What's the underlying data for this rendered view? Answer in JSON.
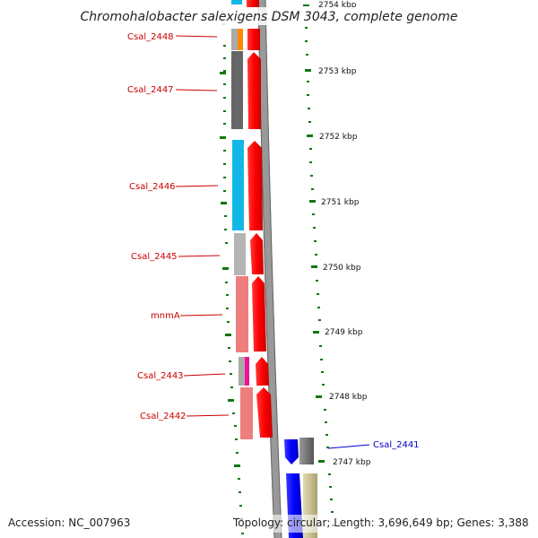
{
  "title": "Chromohalobacter salexigens DSM 3043, complete genome",
  "accession": "Accession: NC_007963",
  "topology": "Topology: circular; Length: 3,696,649 bp; Genes: 3,388",
  "scale_labels": [
    "2754 kbp",
    "2753 kbp",
    "2752 kbp",
    "2751 kbp",
    "2750 kbp",
    "2749 kbp",
    "2748 kbp",
    "2747 kbp"
  ],
  "genes": [
    {
      "name": "Csal_2448",
      "color": "#cc0000",
      "cog_colors": [
        "#aaaaaa",
        "#ff8800"
      ]
    },
    {
      "name": "Csal_2447",
      "color": "#cc0000",
      "cog_colors": [
        "#666666"
      ]
    },
    {
      "name": "Csal_2446",
      "color": "#cc0000",
      "cog_colors": [
        "#11b7e6"
      ]
    },
    {
      "name": "Csal_2445",
      "color": "#cc0000",
      "cog_colors": [
        "#b5b5b5"
      ]
    },
    {
      "name": "mnmA",
      "color": "#cc0000",
      "cog_colors": [
        "#ee7e7e"
      ]
    },
    {
      "name": "Csal_2443",
      "color": "#cc0000",
      "cog_colors": [
        "#aaaaaa",
        "#ee1199"
      ]
    },
    {
      "name": "Csal_2442",
      "color": "#cc0000",
      "cog_colors": [
        "#ee7e7e"
      ]
    },
    {
      "name": "Csal_2441",
      "color": "#0000cc",
      "cog_colors": [
        "#777777"
      ]
    }
  ],
  "colors": {
    "forward_cds": "#ff0000",
    "reverse_cds": "#0000ee",
    "backbone": "#999999",
    "scale_ticks": "#117711",
    "olive_track": "#c8c090"
  }
}
